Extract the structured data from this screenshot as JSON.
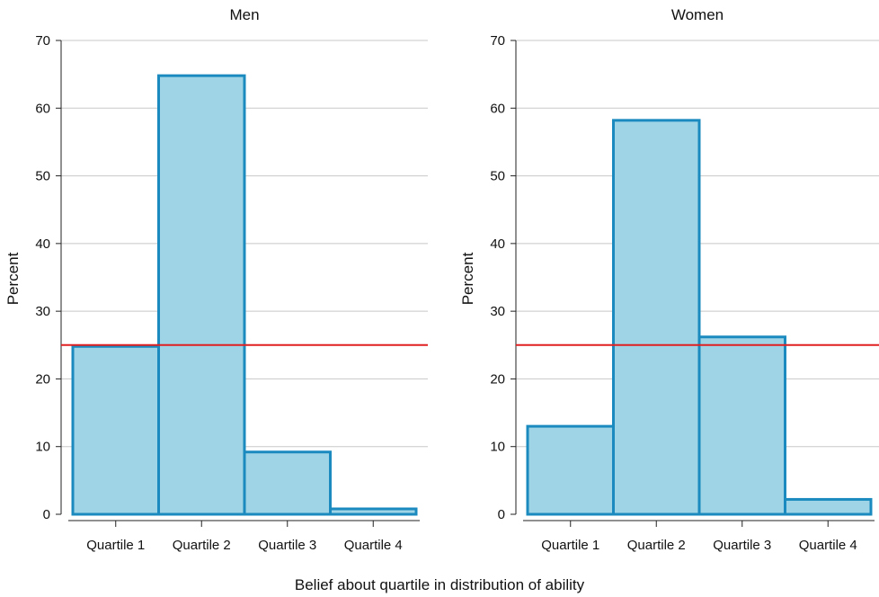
{
  "chart_data": [
    {
      "type": "bar",
      "title": "Men",
      "ylabel": "Percent",
      "categories": [
        "Quartile 1",
        "Quartile 2",
        "Quartile 3",
        "Quartile 4"
      ],
      "values": [
        24.8,
        64.8,
        9.2,
        0.8
      ],
      "ylim": [
        0,
        70
      ],
      "yticks": [
        0,
        10,
        20,
        30,
        40,
        50,
        60,
        70
      ],
      "reference_line": 25,
      "grid": true
    },
    {
      "type": "bar",
      "title": "Women",
      "ylabel": "Percent",
      "categories": [
        "Quartile 1",
        "Quartile 2",
        "Quartile 3",
        "Quartile 4"
      ],
      "values": [
        13.0,
        58.2,
        26.2,
        2.2
      ],
      "ylim": [
        0,
        70
      ],
      "yticks": [
        0,
        10,
        20,
        30,
        40,
        50,
        60,
        70
      ],
      "reference_line": 25,
      "grid": true
    }
  ],
  "xlabel": "Belief about quartile in distribution of ability",
  "colors": {
    "bar_fill": "#9fd3e6",
    "bar_stroke": "#1b8bbf",
    "reference_line": "#e02020",
    "grid": "#c8c8c8",
    "axis": "#222222"
  }
}
